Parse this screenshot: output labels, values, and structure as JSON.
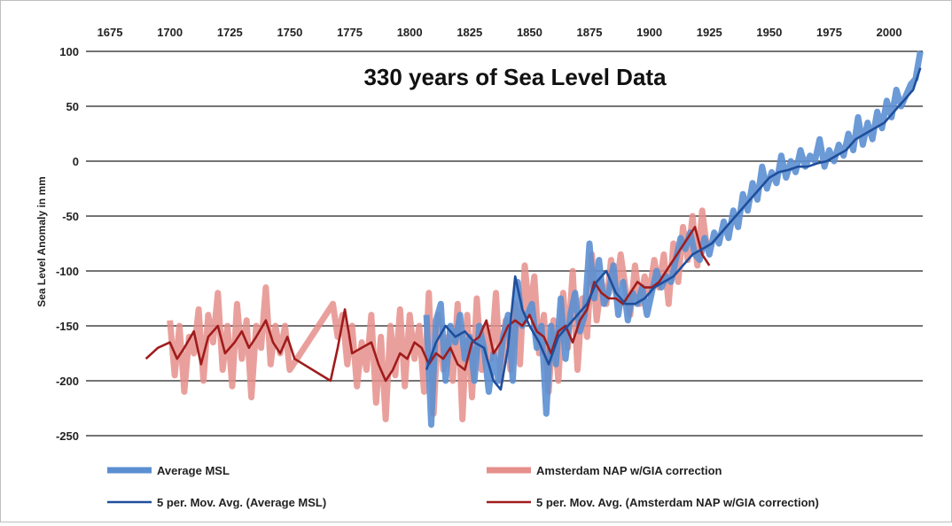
{
  "chart_data": {
    "type": "line",
    "title": "330 years of Sea Level Data",
    "ylabel": "Sea Level Anomaly in mm",
    "xlabel": "",
    "xlim": [
      1665,
      2014
    ],
    "ylim": [
      -250,
      100
    ],
    "x_ticks": [
      1675,
      1700,
      1725,
      1750,
      1775,
      1800,
      1825,
      1850,
      1875,
      1900,
      1925,
      1950,
      1975,
      2000
    ],
    "y_ticks": [
      100,
      50,
      0,
      -50,
      -100,
      -150,
      -200,
      -250
    ],
    "x_axis_position": "top",
    "grid": "horizontal",
    "legend_position": "bottom",
    "series": [
      {
        "name": "Average MSL",
        "color": "#5b8fd1",
        "x": [
          1807,
          1809,
          1811,
          1813,
          1815,
          1817,
          1819,
          1821,
          1823,
          1825,
          1827,
          1829,
          1831,
          1833,
          1835,
          1837,
          1839,
          1841,
          1843,
          1845,
          1847,
          1849,
          1851,
          1853,
          1855,
          1857,
          1859,
          1861,
          1863,
          1865,
          1867,
          1869,
          1871,
          1873,
          1875,
          1877,
          1879,
          1881,
          1883,
          1885,
          1887,
          1889,
          1891,
          1893,
          1895,
          1897,
          1899,
          1901,
          1903,
          1905,
          1907,
          1909,
          1911,
          1913,
          1915,
          1917,
          1919,
          1921,
          1923,
          1925,
          1927,
          1929,
          1931,
          1933,
          1935,
          1937,
          1939,
          1941,
          1943,
          1945,
          1947,
          1949,
          1951,
          1953,
          1955,
          1957,
          1959,
          1961,
          1963,
          1965,
          1967,
          1969,
          1971,
          1973,
          1975,
          1977,
          1979,
          1981,
          1983,
          1985,
          1987,
          1989,
          1991,
          1993,
          1995,
          1997,
          1999,
          2001,
          2003,
          2005,
          2007,
          2009,
          2011,
          2013
        ],
        "values": [
          -140,
          -240,
          -145,
          -130,
          -200,
          -150,
          -165,
          -140,
          -180,
          -160,
          -200,
          -150,
          -170,
          -210,
          -175,
          -200,
          -160,
          -140,
          -200,
          -110,
          -150,
          -140,
          -130,
          -170,
          -150,
          -230,
          -150,
          -185,
          -125,
          -180,
          -140,
          -120,
          -155,
          -140,
          -75,
          -125,
          -90,
          -130,
          -120,
          -95,
          -140,
          -110,
          -145,
          -120,
          -130,
          -115,
          -140,
          -120,
          -100,
          -115,
          -105,
          -110,
          -90,
          -70,
          -80,
          -65,
          -85,
          -90,
          -70,
          -85,
          -65,
          -75,
          -55,
          -70,
          -45,
          -60,
          -30,
          -45,
          -20,
          -35,
          -5,
          -25,
          -10,
          -20,
          5,
          -15,
          0,
          -10,
          10,
          -5,
          5,
          0,
          20,
          -5,
          10,
          0,
          15,
          5,
          25,
          10,
          40,
          15,
          35,
          20,
          45,
          30,
          55,
          40,
          65,
          50,
          60,
          70,
          75,
          100
        ]
      },
      {
        "name": "Amsterdam NAP w/GIA correction",
        "color": "#e58f8b",
        "x": [
          1700,
          1702,
          1704,
          1706,
          1708,
          1710,
          1712,
          1714,
          1716,
          1718,
          1720,
          1722,
          1724,
          1726,
          1728,
          1730,
          1732,
          1734,
          1736,
          1738,
          1740,
          1742,
          1744,
          1746,
          1748,
          1750,
          1768,
          1770,
          1772,
          1774,
          1776,
          1778,
          1780,
          1782,
          1784,
          1786,
          1788,
          1790,
          1792,
          1794,
          1796,
          1798,
          1800,
          1802,
          1804,
          1806,
          1808,
          1810,
          1812,
          1814,
          1816,
          1818,
          1820,
          1822,
          1824,
          1826,
          1828,
          1830,
          1832,
          1834,
          1836,
          1838,
          1840,
          1842,
          1844,
          1846,
          1848,
          1850,
          1852,
          1854,
          1856,
          1858,
          1860,
          1862,
          1864,
          1866,
          1868,
          1870,
          1872,
          1874,
          1876,
          1878,
          1880,
          1882,
          1884,
          1886,
          1888,
          1890,
          1892,
          1894,
          1896,
          1898,
          1900,
          1902,
          1904,
          1906,
          1908,
          1910,
          1912,
          1914,
          1916,
          1918,
          1920,
          1922,
          1924
        ],
        "values": [
          -145,
          -195,
          -150,
          -210,
          -160,
          -175,
          -135,
          -200,
          -140,
          -165,
          -120,
          -190,
          -150,
          -205,
          -130,
          -180,
          -145,
          -215,
          -150,
          -170,
          -115,
          -185,
          -150,
          -175,
          -150,
          -190,
          -130,
          -160,
          -140,
          -185,
          -150,
          -205,
          -165,
          -190,
          -140,
          -220,
          -160,
          -235,
          -150,
          -195,
          -135,
          -205,
          -140,
          -180,
          -150,
          -210,
          -120,
          -230,
          -140,
          -190,
          -160,
          -200,
          -130,
          -235,
          -140,
          -215,
          -125,
          -190,
          -150,
          -180,
          -120,
          -200,
          -145,
          -190,
          -130,
          -185,
          -95,
          -140,
          -105,
          -175,
          -140,
          -210,
          -145,
          -200,
          -120,
          -170,
          -100,
          -190,
          -125,
          -160,
          -85,
          -145,
          -110,
          -130,
          -90,
          -120,
          -85,
          -115,
          -140,
          -95,
          -130,
          -105,
          -120,
          -90,
          -115,
          -85,
          -130,
          -75,
          -110,
          -60,
          -90,
          -50,
          -95,
          -45,
          -80
        ]
      },
      {
        "name": "5 per. Mov. Avg. (Average MSL)",
        "color": "#1f4e9c",
        "x": [
          1807,
          1811,
          1815,
          1819,
          1823,
          1827,
          1831,
          1835,
          1838,
          1841,
          1844,
          1847,
          1850,
          1854,
          1858,
          1862,
          1866,
          1870,
          1874,
          1878,
          1882,
          1886,
          1890,
          1894,
          1898,
          1902,
          1906,
          1910,
          1914,
          1918,
          1922,
          1926,
          1930,
          1934,
          1938,
          1942,
          1946,
          1950,
          1954,
          1958,
          1962,
          1966,
          1970,
          1974,
          1978,
          1982,
          1986,
          1990,
          1994,
          1998,
          2002,
          2006,
          2010,
          2013
        ],
        "values": [
          -190,
          -165,
          -150,
          -160,
          -155,
          -165,
          -170,
          -200,
          -208,
          -170,
          -105,
          -135,
          -150,
          -165,
          -185,
          -160,
          -150,
          -140,
          -130,
          -110,
          -100,
          -120,
          -130,
          -130,
          -125,
          -115,
          -110,
          -105,
          -95,
          -85,
          -80,
          -75,
          -65,
          -55,
          -45,
          -35,
          -25,
          -15,
          -10,
          -8,
          -5,
          -5,
          -2,
          0,
          5,
          10,
          20,
          25,
          30,
          35,
          45,
          55,
          65,
          85
        ]
      },
      {
        "name": "5 per. Mov. Avg. (Amsterdam NAP w/GIA correction)",
        "color": "#a01c1c",
        "x": [
          1690,
          1695,
          1700,
          1703,
          1706,
          1710,
          1713,
          1716,
          1720,
          1723,
          1727,
          1730,
          1733,
          1736,
          1740,
          1743,
          1746,
          1749,
          1752,
          1767,
          1770,
          1773,
          1776,
          1780,
          1784,
          1787,
          1790,
          1793,
          1796,
          1799,
          1802,
          1805,
          1808,
          1811,
          1814,
          1817,
          1820,
          1823,
          1826,
          1829,
          1832,
          1835,
          1838,
          1841,
          1844,
          1847,
          1850,
          1853,
          1856,
          1859,
          1862,
          1865,
          1868,
          1871,
          1874,
          1877,
          1880,
          1883,
          1886,
          1889,
          1892,
          1895,
          1898,
          1901,
          1904,
          1907,
          1910,
          1913,
          1916,
          1919,
          1922,
          1925
        ],
        "values": [
          -180,
          -170,
          -165,
          -180,
          -170,
          -155,
          -185,
          -160,
          -150,
          -175,
          -165,
          -155,
          -170,
          -160,
          -145,
          -165,
          -175,
          -160,
          -180,
          -200,
          -170,
          -135,
          -175,
          -170,
          -165,
          -185,
          -200,
          -190,
          -175,
          -180,
          -165,
          -170,
          -185,
          -175,
          -180,
          -170,
          -185,
          -190,
          -165,
          -160,
          -145,
          -175,
          -165,
          -150,
          -145,
          -150,
          -140,
          -155,
          -160,
          -175,
          -155,
          -150,
          -165,
          -145,
          -135,
          -110,
          -120,
          -125,
          -125,
          -130,
          -120,
          -110,
          -115,
          -115,
          -110,
          -100,
          -90,
          -80,
          -70,
          -60,
          -85,
          -95
        ]
      }
    ]
  },
  "legend": [
    {
      "label": "Average MSL",
      "color": "#5b8fd1",
      "style": "thick"
    },
    {
      "label": "Amsterdam NAP w/GIA correction",
      "color": "#e58f8b",
      "style": "thick"
    },
    {
      "label": "5 per. Mov. Avg. (Average MSL)",
      "color": "#1f4e9c",
      "style": "thin"
    },
    {
      "label": "5 per. Mov. Avg. (Amsterdam NAP w/GIA correction)",
      "color": "#a01c1c",
      "style": "thin"
    }
  ]
}
